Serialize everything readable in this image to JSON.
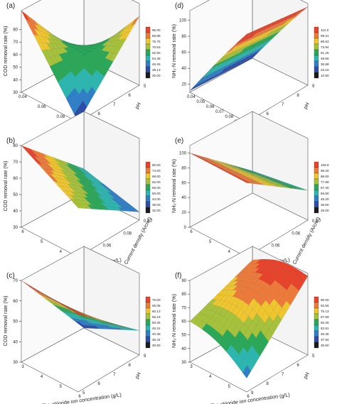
{
  "chart_data": [
    {
      "panel": "(a)",
      "type": "surface3d",
      "zlabel": "COD removal rate (%)",
      "xlabel": "Current density (A/cm²)",
      "ylabel": "pH",
      "x_ticks": [
        "0.04",
        "0.06",
        "0.08",
        "0.10"
      ],
      "y_ticks": [
        "9",
        "8",
        "7",
        "6",
        "5"
      ],
      "z_ticks": [
        "30",
        "40",
        "50",
        "60",
        "70",
        "80"
      ],
      "zlim": [
        30,
        95
      ],
      "shape": "saddle",
      "corners": {
        "x_low_y_low": 95,
        "x_low_y_high": 30,
        "x_high_y_low": 30,
        "x_high_y_high": 85
      },
      "legend": [
        "95.00",
        "86.88",
        "78.75",
        "70.63",
        "62.50",
        "54.38",
        "46.25",
        "38.13",
        "30.00"
      ],
      "colors": [
        "#e8432a",
        "#ee7a3a",
        "#f0c62e",
        "#a6c23a",
        "#2aa858",
        "#2cb6b0",
        "#2e7fc7",
        "#2b4da8",
        "#1a1a1a"
      ]
    },
    {
      "panel": "(d)",
      "type": "surface3d",
      "zlabel": "NH₃-N removal rate (%)",
      "xlabel": "Current density (A/cm²)",
      "ylabel": "pH",
      "x_ticks": [
        "0.04",
        "0.05",
        "0.06",
        "0.07",
        "0.08",
        "0.09",
        "0.10"
      ],
      "y_ticks": [
        "5",
        "6",
        "7",
        "8",
        "9"
      ],
      "z_ticks": [
        "0",
        "20",
        "40",
        "60",
        "80",
        "100"
      ],
      "zlim": [
        10,
        112
      ],
      "shape": "rising",
      "corners": {
        "x_low_y_low": 12,
        "x_low_y_high": 10,
        "x_high_y_low": 112,
        "x_high_y_high": 100
      },
      "legend": [
        "112.0",
        "99.31",
        "86.63",
        "73.94",
        "61.25",
        "48.56",
        "35.88",
        "23.19",
        "10.50"
      ],
      "colors": [
        "#e8432a",
        "#ee7a3a",
        "#f0c62e",
        "#a6c23a",
        "#2aa858",
        "#2cb6b0",
        "#2e7fc7",
        "#2b4da8",
        "#1a1a1a"
      ]
    },
    {
      "panel": "(b)",
      "type": "surface3d",
      "zlabel": "COD removal rate (%)",
      "xlabel": "The chloride ion concentration (g/L)",
      "ylabel": "Current density (A/cm²)",
      "x_ticks": [
        "6",
        "5",
        "4",
        "3"
      ],
      "y_ticks": [
        "0.04",
        "0.06",
        "0.08",
        "0.10"
      ],
      "z_ticks": [
        "30",
        "40",
        "50",
        "60",
        "70",
        "80"
      ],
      "zlim": [
        30,
        80
      ],
      "shape": "falling",
      "corners": {
        "x_low_y_low": 80,
        "x_low_y_high": 45,
        "x_high_y_low": 60,
        "x_high_y_high": 35
      },
      "legend": [
        "80.00",
        "74.00",
        "68.00",
        "62.00",
        "56.00",
        "50.00",
        "44.00",
        "38.00",
        "32.00"
      ],
      "colors": [
        "#e8432a",
        "#ee7a3a",
        "#f0c62e",
        "#a6c23a",
        "#2aa858",
        "#2cb6b0",
        "#2e7fc7",
        "#2b4da8",
        "#1a1a1a"
      ]
    },
    {
      "panel": "(e)",
      "type": "surface3d",
      "zlabel": "NH₃-N removal rate (%)",
      "xlabel": "The chloride ion concentration (g/L)",
      "ylabel": "Current density (A/cm²)",
      "x_ticks": [
        "6",
        "5",
        "4",
        "3"
      ],
      "y_ticks": [
        "0.04",
        "0.06",
        "0.08",
        "0.10"
      ],
      "z_ticks": [
        "0",
        "20",
        "40",
        "60",
        "80",
        "100"
      ],
      "zlim": [
        0,
        110
      ],
      "shape": "falling",
      "corners": {
        "x_low_y_low": 100,
        "x_low_y_high": 30,
        "x_high_y_low": 100,
        "x_high_y_high": 40
      },
      "legend": [
        "109.9",
        "99.20",
        "88.60",
        "77.99",
        "67.40",
        "56.80",
        "46.20",
        "35.60",
        "25.00"
      ],
      "colors": [
        "#e8432a",
        "#ee7a3a",
        "#f0c62e",
        "#a6c23a",
        "#2aa858",
        "#2cb6b0",
        "#2e7fc7",
        "#2b4da8",
        "#1a1a1a"
      ]
    },
    {
      "panel": "(c)",
      "type": "surface3d",
      "zlabel": "COD removal rate (%)",
      "xlabel": "The chloride ion concentration (g/L)",
      "ylabel": "pH",
      "x_ticks": [
        "3",
        "4",
        "5",
        "6"
      ],
      "y_ticks": [
        "5",
        "6",
        "7",
        "8",
        "9"
      ],
      "z_ticks": [
        "30",
        "40",
        "50",
        "60",
        "70"
      ],
      "zlim": [
        30,
        70
      ],
      "shape": "falling",
      "corners": {
        "x_low_y_low": 70,
        "x_low_y_high": 30,
        "x_high_y_low": 68,
        "x_high_y_high": 42
      },
      "legend": [
        "70.00",
        "65.06",
        "60.13",
        "55.19",
        "50.25",
        "45.31",
        "40.38",
        "35.44",
        "30.50"
      ],
      "colors": [
        "#e8432a",
        "#ee7a3a",
        "#f0c62e",
        "#a6c23a",
        "#2aa858",
        "#2cb6b0",
        "#2e7fc7",
        "#2b4da8",
        "#1a1a1a"
      ]
    },
    {
      "panel": "(f)",
      "type": "surface3d",
      "zlabel": "NH₃-N removal rate (%)",
      "xlabel": "The chloride ion concentration (g/L)",
      "ylabel": "pH",
      "x_ticks": [
        "3",
        "4",
        "5",
        "6"
      ],
      "y_ticks": [
        "9",
        "8",
        "7",
        "6",
        "5"
      ],
      "z_ticks": [
        "30",
        "40",
        "50",
        "60",
        "70",
        "80",
        "90"
      ],
      "zlim": [
        30,
        90
      ],
      "shape": "dome",
      "corners": {
        "x_low_y_low": 60,
        "x_low_y_high": 80,
        "x_high_y_low": 40,
        "x_high_y_high": 88
      },
      "legend": [
        "90.00",
        "82.56",
        "75.13",
        "67.69",
        "60.25",
        "52.81",
        "45.38",
        "37.94",
        "30.50"
      ],
      "colors": [
        "#e8432a",
        "#ee7a3a",
        "#f0c62e",
        "#a6c23a",
        "#2aa858",
        "#2cb6b0",
        "#2e7fc7",
        "#2b4da8",
        "#1a1a1a"
      ]
    }
  ]
}
